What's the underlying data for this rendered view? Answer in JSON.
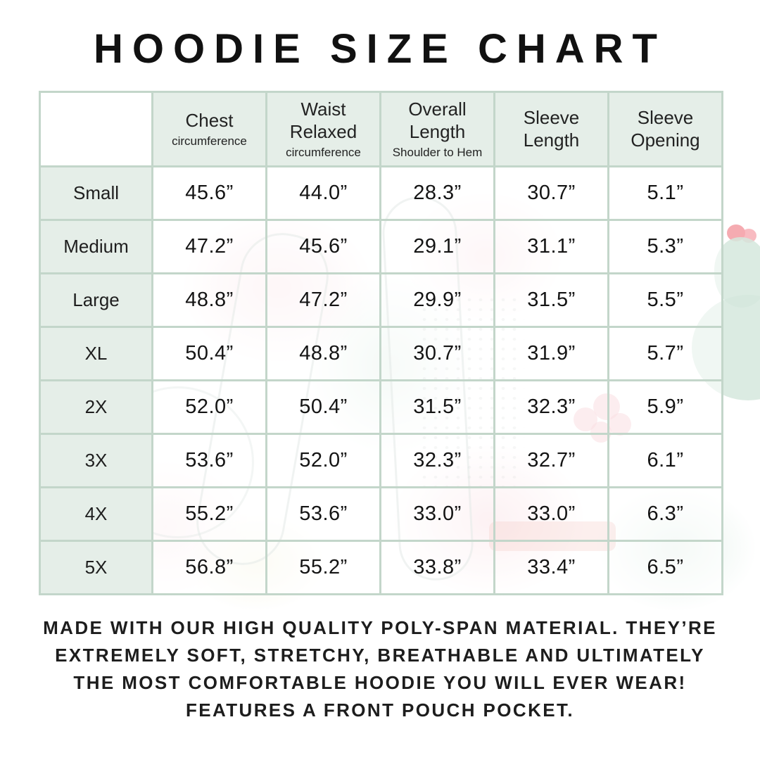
{
  "title": "HOODIE SIZE CHART",
  "chart_data": {
    "type": "table",
    "title": "HOODIE SIZE CHART",
    "columns": [
      {
        "label": "Chest",
        "sublabel": "circumference"
      },
      {
        "label": "Waist Relaxed",
        "sublabel": "circumference"
      },
      {
        "label": "Overall Length",
        "sublabel": "Shoulder to Hem"
      },
      {
        "label": "Sleeve Length",
        "sublabel": ""
      },
      {
        "label": "Sleeve Opening",
        "sublabel": ""
      }
    ],
    "rows": [
      {
        "size": "Small",
        "values": [
          "45.6”",
          "44.0”",
          "28.3”",
          "30.7”",
          "5.1”"
        ]
      },
      {
        "size": "Medium",
        "values": [
          "47.2”",
          "45.6”",
          "29.1”",
          "31.1”",
          "5.3”"
        ]
      },
      {
        "size": "Large",
        "values": [
          "48.8”",
          "47.2”",
          "29.9”",
          "31.5”",
          "5.5”"
        ]
      },
      {
        "size": "XL",
        "values": [
          "50.4”",
          "48.8”",
          "30.7”",
          "31.9”",
          "5.7”"
        ]
      },
      {
        "size": "2X",
        "values": [
          "52.0”",
          "50.4”",
          "31.5”",
          "32.3”",
          "5.9”"
        ]
      },
      {
        "size": "3X",
        "values": [
          "53.6”",
          "52.0”",
          "32.3”",
          "32.7”",
          "6.1”"
        ]
      },
      {
        "size": "4X",
        "values": [
          "55.2”",
          "53.6”",
          "33.0”",
          "33.0”",
          "6.3”"
        ]
      },
      {
        "size": "5X",
        "values": [
          "56.8”",
          "55.2”",
          "33.8”",
          "33.4”",
          "6.5”"
        ]
      }
    ]
  },
  "footer": {
    "lines": [
      "MADE WITH OUR HIGH QUALITY POLY-SPAN MATERIAL. THEY’RE",
      "EXTREMELY SOFT, STRETCHY, BREATHABLE AND ULTIMATELY",
      "THE MOST COMFORTABLE HOODIE YOU WILL EVER WEAR!",
      "FEATURES A FRONT POUCH POCKET."
    ]
  },
  "colors": {
    "header_fill": "#e5eee8",
    "grid_line": "#c3d6ca",
    "text": "#1b1b1b",
    "accent_pink": "#f6c3ca",
    "accent_mint": "#d5e7dd"
  }
}
